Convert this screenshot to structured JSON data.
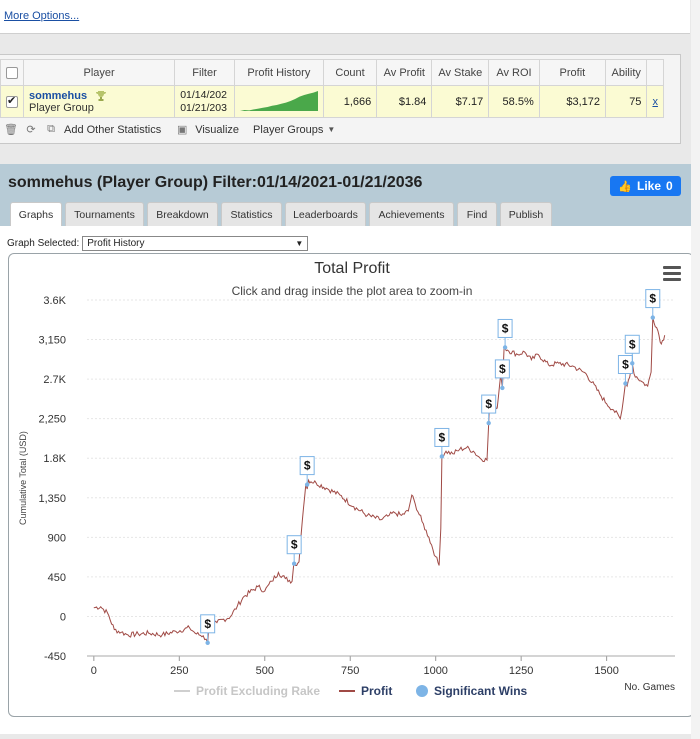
{
  "top": {
    "more_options": "More Options..."
  },
  "table": {
    "headers": [
      "Player",
      "Filter",
      "Profit History",
      "Count",
      "Av Profit",
      "Av Stake",
      "Av ROI",
      "Profit",
      "Ability"
    ],
    "row": {
      "name": "sommehus",
      "type": "Player Group",
      "filter_from": "01/14/202",
      "filter_to": "01/21/203",
      "count": "1,666",
      "av_profit": "$1.84",
      "av_stake": "$7.17",
      "av_roi": "58.5%",
      "profit": "$3,172",
      "ability": "75",
      "remove": "x"
    },
    "sparkline": [
      0,
      0.5,
      0.3,
      0.8,
      1.2,
      1.6,
      2.0,
      2.6,
      3.0,
      3.6,
      4.2,
      5,
      6,
      7.2,
      8,
      8.6,
      9.2,
      10
    ],
    "sparkline_color": "#4aa84a"
  },
  "tools": {
    "add_stats": "Add Other Statistics",
    "visualize": "Visualize",
    "player_groups": "Player Groups"
  },
  "main": {
    "title": "sommehus (Player Group) Filter:01/14/2021-01/21/2036",
    "like_label": "Like",
    "like_count": "0"
  },
  "tabs": [
    "Graphs",
    "Tournaments",
    "Breakdown",
    "Statistics",
    "Leaderboards",
    "Achievements",
    "Find",
    "Publish"
  ],
  "graph_select": {
    "label": "Graph Selected:",
    "value": "Profit History"
  },
  "chart_data": {
    "type": "line",
    "title": "Total Profit",
    "subtitle": "Click and drag inside the plot area to zoom-in",
    "xlabel": "No. Games",
    "ylabel": "Cumulative Total (USD)",
    "xlim": [
      -20,
      1700
    ],
    "ylim": [
      -450,
      3600
    ],
    "x_ticks": [
      0,
      250,
      500,
      750,
      1000,
      1250,
      1500
    ],
    "x_tick_labels": [
      "0",
      "250",
      "500",
      "750",
      "1000",
      "1250",
      "1500"
    ],
    "y_ticks": [
      -450,
      0,
      450,
      900,
      1350,
      1800,
      2250,
      2700,
      3150,
      3600
    ],
    "y_tick_labels": [
      "-450",
      "0",
      "450",
      "900",
      "1,350",
      "1.8K",
      "2,250",
      "2.7K",
      "3,150",
      "3.6K"
    ],
    "legend": [
      "Profit Excluding Rake",
      "Profit",
      "Significant Wins"
    ],
    "legend_colors": [
      "#cfcfcf",
      "#a04a45",
      "#7db4e6"
    ],
    "series": [
      {
        "name": "Profit",
        "x": [
          0,
          20,
          40,
          60,
          80,
          100,
          130,
          160,
          200,
          240,
          280,
          300,
          320,
          333,
          336,
          360,
          400,
          420,
          440,
          480,
          500,
          520,
          540,
          560,
          580,
          585,
          590,
          600,
          610,
          620,
          624,
          628,
          650,
          680,
          720,
          760,
          800,
          840,
          860,
          880,
          900,
          920,
          930,
          940,
          960,
          980,
          1000,
          1010,
          1015,
          1018,
          1030,
          1050,
          1070,
          1090,
          1110,
          1130,
          1150,
          1155,
          1158,
          1170,
          1180,
          1190,
          1195,
          1200,
          1210,
          1240,
          1260,
          1280,
          1300,
          1330,
          1360,
          1400,
          1440,
          1480,
          1500,
          1520,
          1540,
          1545,
          1555,
          1560,
          1575,
          1580,
          1600,
          1620,
          1630,
          1635,
          1650,
          1660,
          1670
        ],
        "y": [
          100,
          110,
          40,
          -150,
          -180,
          -210,
          -200,
          -190,
          -210,
          -170,
          -130,
          -200,
          -220,
          -300,
          -140,
          -70,
          0,
          120,
          230,
          340,
          290,
          400,
          500,
          430,
          400,
          600,
          580,
          620,
          1100,
          1500,
          1450,
          1550,
          1520,
          1460,
          1380,
          1250,
          1150,
          1100,
          1140,
          1180,
          1150,
          1200,
          1380,
          1280,
          1080,
          900,
          680,
          580,
          1000,
          1820,
          1880,
          1850,
          1900,
          1920,
          1880,
          1800,
          1780,
          2200,
          2450,
          2420,
          2370,
          2750,
          2600,
          3060,
          3030,
          2980,
          3010,
          2920,
          2980,
          2860,
          2880,
          2850,
          2760,
          2530,
          2420,
          2350,
          2250,
          2350,
          2650,
          2620,
          2880,
          2760,
          2680,
          2620,
          2780,
          3400,
          3250,
          3100,
          3200
        ]
      }
    ],
    "significant_wins": [
      {
        "x": 333,
        "y": -300
      },
      {
        "x": 586,
        "y": 600
      },
      {
        "x": 624,
        "y": 1500
      },
      {
        "x": 1018,
        "y": 1820
      },
      {
        "x": 1155,
        "y": 2200
      },
      {
        "x": 1195,
        "y": 2600
      },
      {
        "x": 1203,
        "y": 3060
      },
      {
        "x": 1555,
        "y": 2650
      },
      {
        "x": 1575,
        "y": 2880
      },
      {
        "x": 1635,
        "y": 3400
      }
    ],
    "win_marker_label": "$"
  }
}
